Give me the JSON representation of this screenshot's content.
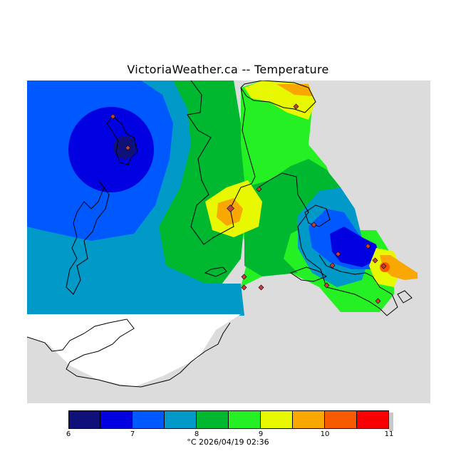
{
  "title": "VictoriaWeather.ca -- Temperature",
  "legend": {
    "colors": [
      "#10107a",
      "#0000e0",
      "#0058ff",
      "#0099c8",
      "#00b830",
      "#24f024",
      "#e8f800",
      "#f8a800",
      "#f85a00",
      "#f80000"
    ],
    "ticks": [
      "6",
      "7",
      "8",
      "9",
      "10",
      "11"
    ]
  },
  "footer": "°C  2026/04/19 02:36",
  "map": {
    "land_color": "#dcdcdc",
    "no_data_color": "#ffffff",
    "station_marker_color": "#c83c3c"
  }
}
